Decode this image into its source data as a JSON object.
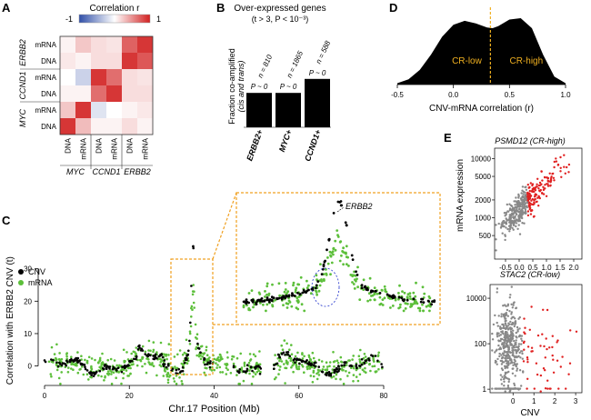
{
  "panels": {
    "A": {
      "label": "A",
      "colorbar": {
        "title": "Correlation r",
        "min_label": "-1",
        "max_label": "1"
      },
      "row_labels": [
        "mRNA",
        "DNA",
        "mRNA",
        "DNA",
        "mRNA",
        "DNA"
      ],
      "row_groups": [
        "ERBB2",
        "CCND1",
        "MYC"
      ],
      "col_labels": [
        "DNA",
        "mRNA",
        "DNA",
        "mRNA",
        "DNA",
        "mRNA"
      ],
      "col_groups": [
        "MYC",
        "CCND1",
        "ERBB2"
      ]
    },
    "B": {
      "label": "B",
      "title_line1": "Over-expressed genes",
      "title_line2": "(t > 3, P < 10⁻³)",
      "ylabel_line1": "Fraction co-amplified",
      "ylabel_line2": "(cis and trans)"
    },
    "C": {
      "label": "C",
      "legend": [
        {
          "name": "CNV",
          "color": "#000000"
        },
        {
          "name": "mRNA",
          "color": "#5cbf3a"
        }
      ],
      "inset_label": "ERBB2"
    },
    "D": {
      "label": "D",
      "left_label": "CR-low",
      "right_label": "CR-high"
    },
    "E": {
      "label": "E",
      "ylabel": "mRNA expression",
      "xlabel": "CNV",
      "top_title": "PSMD12 (CR-high)",
      "bottom_title": "STAC2 (CR-low)"
    }
  },
  "chart_data": [
    {
      "panel": "A",
      "type": "heatmap",
      "rows": [
        "ERBB2 mRNA",
        "ERBB2 DNA",
        "CCND1 mRNA",
        "CCND1 DNA",
        "MYC mRNA",
        "MYC DNA"
      ],
      "columns": [
        "MYC DNA",
        "MYC mRNA",
        "CCND1 DNA",
        "CCND1 mRNA",
        "ERBB2 DNA",
        "ERBB2 mRNA"
      ],
      "values": [
        [
          0.05,
          0.25,
          0.15,
          0.12,
          0.7,
          0.9
        ],
        [
          0.1,
          0.05,
          0.15,
          0.15,
          0.9,
          0.75
        ],
        [
          0.0,
          -0.25,
          0.9,
          0.65,
          0.15,
          0.12
        ],
        [
          0.05,
          0.05,
          0.65,
          0.9,
          0.15,
          0.15
        ],
        [
          0.25,
          0.9,
          -0.15,
          0.0,
          0.05,
          0.1
        ],
        [
          0.9,
          0.3,
          0.05,
          0.05,
          0.15,
          0.05
        ]
      ],
      "scale": [
        -1,
        1
      ]
    },
    {
      "panel": "B",
      "type": "bar",
      "categories": [
        "ERBB2+",
        "MYC+",
        "CCND1+"
      ],
      "values": [
        0.27,
        0.27,
        0.38
      ],
      "n_labels": [
        "n = 810",
        "n = 1865",
        "n = 588"
      ],
      "p_labels": [
        "P ~ 0",
        "P ~ 0",
        "P ~ 0"
      ],
      "color": "#000000"
    },
    {
      "panel": "C",
      "type": "scatter",
      "xlabel": "Chr.17 Position (Mb)",
      "ylabel": "Correlation with ERBB2 CNV (t)",
      "xlim": [
        0,
        80
      ],
      "ylim": [
        -6,
        40
      ],
      "xticks": [
        0,
        20,
        40,
        60,
        80
      ],
      "yticks": [
        0,
        10,
        20,
        30
      ],
      "peak": {
        "position_mb": 35,
        "cnv_t": 36,
        "mrna_t": 25
      },
      "series": [
        {
          "name": "CNV",
          "color": "#000000"
        },
        {
          "name": "mRNA",
          "color": "#5cbf3a"
        }
      ]
    },
    {
      "panel": "D",
      "type": "area",
      "xlabel": "CNV-mRNA correlation (r)",
      "xlim": [
        -0.5,
        1.0
      ],
      "xticks": [
        -0.5,
        0.0,
        0.5,
        1.0
      ],
      "x": [
        -0.5,
        -0.4,
        -0.3,
        -0.2,
        -0.1,
        0.0,
        0.1,
        0.2,
        0.3,
        0.35,
        0.4,
        0.5,
        0.6,
        0.7,
        0.8,
        0.9,
        1.0
      ],
      "density": [
        0.02,
        0.08,
        0.22,
        0.45,
        0.72,
        0.9,
        0.96,
        0.92,
        0.86,
        0.85,
        0.88,
        0.98,
        1.0,
        0.85,
        0.45,
        0.12,
        0.02
      ],
      "threshold": 0.33,
      "color": "#000000",
      "threshold_color": "#f0b020"
    },
    {
      "panel": "E-top",
      "type": "scatter",
      "title": "PSMD12 (CR-high)",
      "xlim": [
        -0.9,
        2.3
      ],
      "xticks": [
        -0.5,
        0.0,
        0.5,
        1.0,
        1.5,
        2.0
      ],
      "ylim_log": [
        200,
        15000
      ],
      "yticks": [
        500,
        1000,
        2000,
        5000,
        10000
      ],
      "ylabel": "mRNA expression",
      "cnv_threshold": 0.3,
      "colors": {
        "low": "#888888",
        "high": "#e02020"
      }
    },
    {
      "panel": "E-bottom",
      "type": "scatter",
      "title": "STAC2 (CR-low)",
      "xlim": [
        -1.1,
        3.3
      ],
      "xticks": [
        0,
        1,
        2,
        3
      ],
      "ylim_log": [
        0.7,
        40000
      ],
      "yticks": [
        1,
        100,
        10000
      ],
      "xlabel": "CNV",
      "cnv_threshold": 0.5,
      "colors": {
        "low": "#888888",
        "high": "#e02020"
      }
    }
  ]
}
